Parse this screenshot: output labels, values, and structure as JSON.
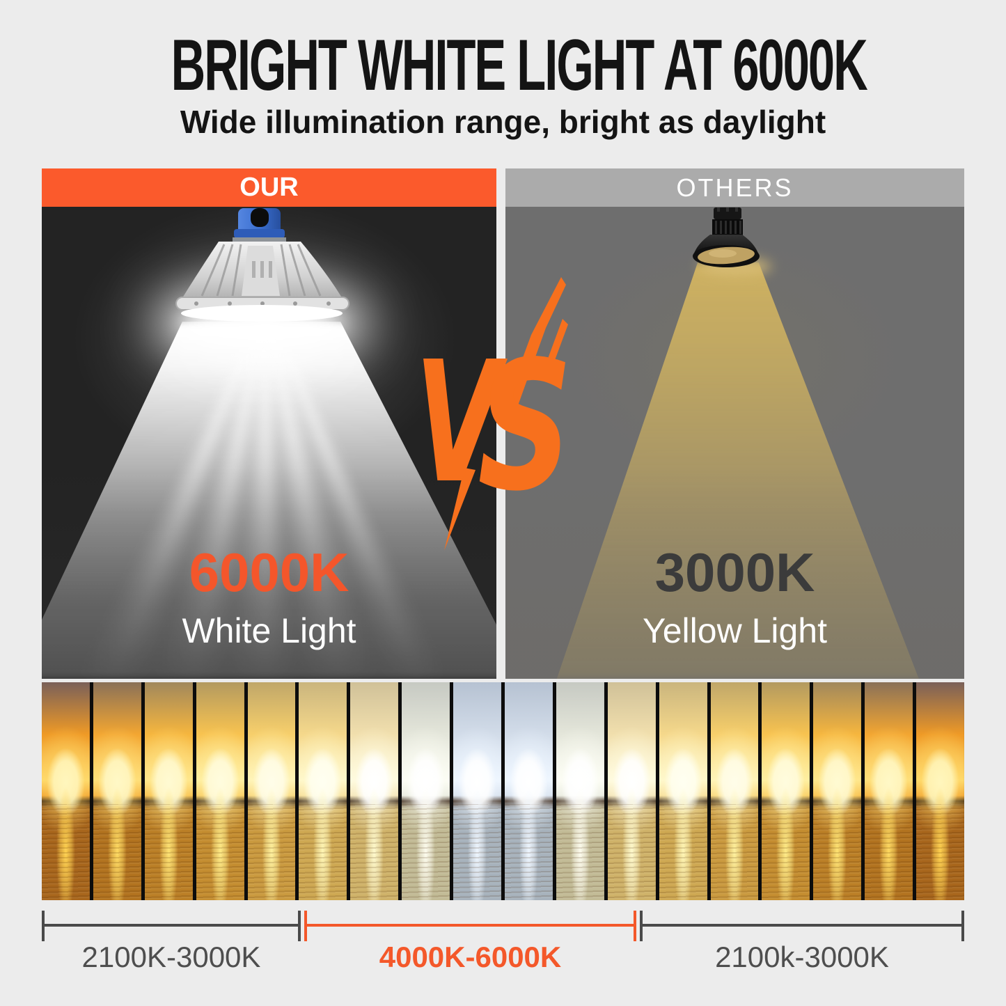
{
  "page": {
    "background": "#ececec"
  },
  "header": {
    "title": "BRIGHT WHITE LIGHT AT 6000K",
    "subtitle": "Wide illumination range, bright as daylight",
    "text_color": "#141414"
  },
  "comparison": {
    "vs": {
      "v": "V",
      "s": "S",
      "color": "#f7701d"
    },
    "our": {
      "label": "OUR",
      "header_bg": "#fb5a2c",
      "panel_bg": "#232323",
      "temp": "6000K",
      "temp_color": "#f4562b",
      "desc": "White Light",
      "desc_color": "#ffffff",
      "beam_color": "#ffffff"
    },
    "others": {
      "label": "OTHERS",
      "header_bg": "#ababab",
      "panel_bg": "#6e6e6e",
      "temp": "3000K",
      "temp_color": "#3b3b3b",
      "desc": "Yellow Light",
      "desc_color": "#ffffff",
      "beam_color": "#c9ab5e"
    }
  },
  "strip": {
    "slices": [
      {
        "cloud": "#7a6059",
        "sky": "#ef9a26",
        "glow": "#ffd96a",
        "sun": "#fff6bd",
        "sea": "#a8661c",
        "refl": "#ffd14f"
      },
      {
        "cloud": "#8a7158",
        "sky": "#f3a631",
        "glow": "#ffdf79",
        "sun": "#fff8c6",
        "sea": "#b2731f",
        "refl": "#ffda60"
      },
      {
        "cloud": "#a1885c",
        "sky": "#f6b63e",
        "glow": "#ffe78c",
        "sun": "#fffad2",
        "sea": "#bb7f26",
        "refl": "#ffe372"
      },
      {
        "cloud": "#b39a60",
        "sky": "#f8c350",
        "glow": "#ffefa1",
        "sun": "#fffcde",
        "sea": "#c48d30",
        "refl": "#ffeb86"
      },
      {
        "cloud": "#c0a769",
        "sky": "#f7cf6b",
        "glow": "#fff4b8",
        "sun": "#fffde9",
        "sea": "#ca9a3f",
        "refl": "#fff19d"
      },
      {
        "cloud": "#cab57d",
        "sky": "#f5d88b",
        "glow": "#fff8cb",
        "sun": "#fffff1",
        "sea": "#cea852",
        "refl": "#fff6b5"
      },
      {
        "cloud": "#d0c198",
        "sky": "#f1dfad",
        "glow": "#fffbdf",
        "sun": "#ffffff",
        "sea": "#cfb269",
        "refl": "#fffacd"
      },
      {
        "cloud": "#c6c9c2",
        "sky": "#e4e6da",
        "glow": "#fcfdf4",
        "sun": "#ffffff",
        "sea": "#c2bb96",
        "refl": "#fdfcee"
      },
      {
        "cloud": "#b6c2d2",
        "sky": "#d2dce9",
        "glow": "#eef6ff",
        "sun": "#ffffff",
        "sea": "#a7b2bc",
        "refl": "#eef6ff"
      },
      {
        "cloud": "#b6c2d2",
        "sky": "#d2dce9",
        "glow": "#eef6ff",
        "sun": "#ffffff",
        "sea": "#a7b2bc",
        "refl": "#eef6ff"
      },
      {
        "cloud": "#c6c9c2",
        "sky": "#e4e6da",
        "glow": "#fcfdf4",
        "sun": "#ffffff",
        "sea": "#c2bb96",
        "refl": "#fdfcee"
      },
      {
        "cloud": "#d0c198",
        "sky": "#f1dfad",
        "glow": "#fffbdf",
        "sun": "#ffffff",
        "sea": "#cfb269",
        "refl": "#fffacd"
      },
      {
        "cloud": "#cab57d",
        "sky": "#f5d88b",
        "glow": "#fff8cb",
        "sun": "#fffff1",
        "sea": "#cea852",
        "refl": "#fff6b5"
      },
      {
        "cloud": "#c0a769",
        "sky": "#f7cf6b",
        "glow": "#fff4b8",
        "sun": "#fffde9",
        "sea": "#ca9a3f",
        "refl": "#fff19d"
      },
      {
        "cloud": "#b39a60",
        "sky": "#f8c350",
        "glow": "#ffefa1",
        "sun": "#fffcde",
        "sea": "#c48d30",
        "refl": "#ffeb86"
      },
      {
        "cloud": "#a1885c",
        "sky": "#f6b63e",
        "glow": "#ffe78c",
        "sun": "#fffad2",
        "sea": "#bb7f26",
        "refl": "#ffe372"
      },
      {
        "cloud": "#8a7158",
        "sky": "#f3a631",
        "glow": "#ffdf79",
        "sun": "#fff8c6",
        "sea": "#b2731f",
        "refl": "#ffda60"
      },
      {
        "cloud": "#7a6059",
        "sky": "#ef9a26",
        "glow": "#ffd96a",
        "sun": "#fff6bd",
        "sea": "#a8661c",
        "refl": "#ffd14f"
      }
    ]
  },
  "scale": {
    "segments": [
      {
        "label": "2100K-3000K",
        "line_color": "#4a4a4a",
        "text_color": "#4e4e4e",
        "bold": false
      },
      {
        "label": "4000K-6000K",
        "line_color": "#f4582a",
        "text_color": "#f4582a",
        "bold": true
      },
      {
        "label": "2100k-3000K",
        "line_color": "#4a4a4a",
        "text_color": "#4e4e4e",
        "bold": false
      }
    ]
  }
}
